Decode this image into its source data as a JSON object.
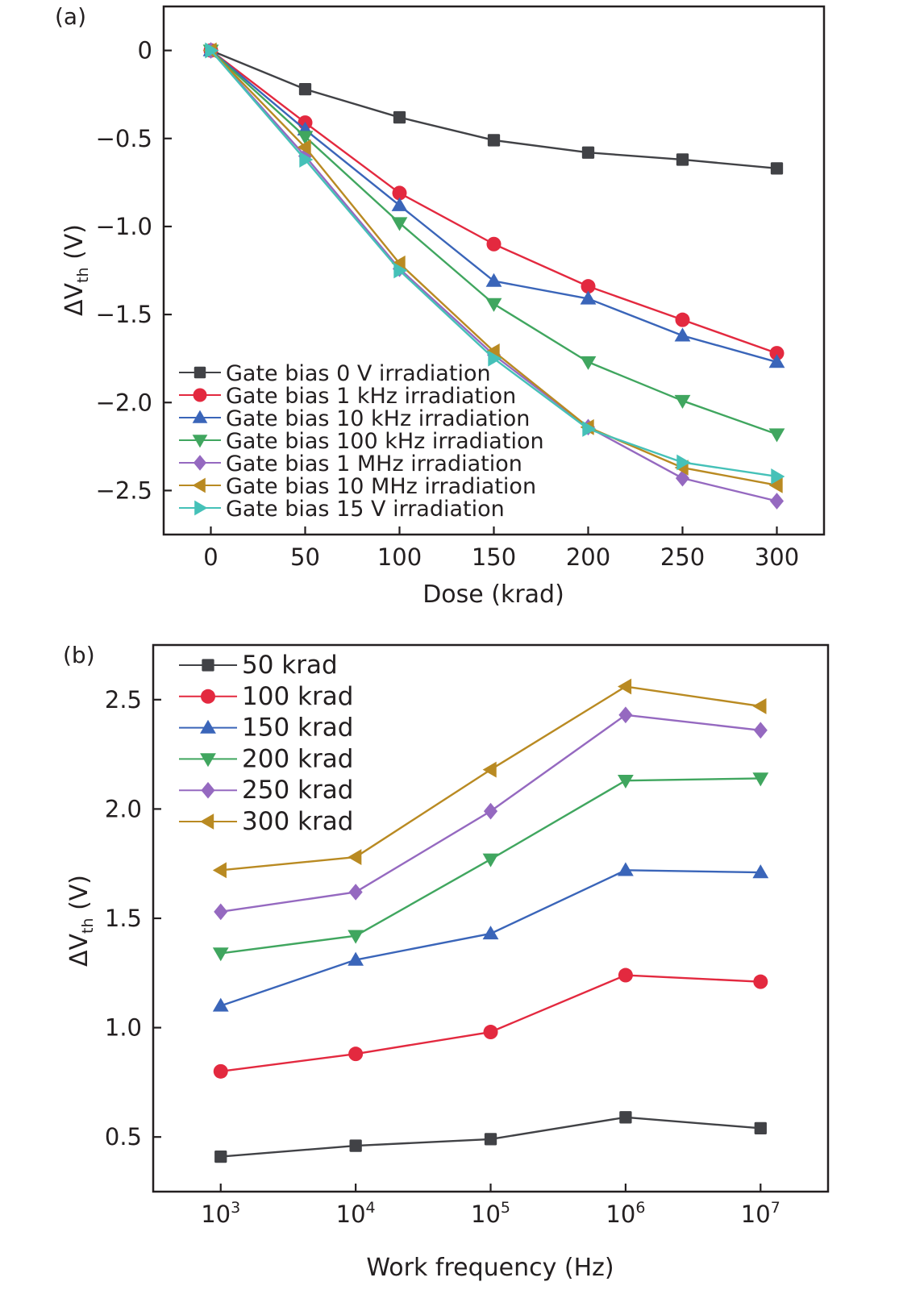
{
  "colors": {
    "axis": "#231f20",
    "s0": "#414246",
    "s1": "#e3293f",
    "s2": "#3a65b9",
    "s3": "#40a65f",
    "s4": "#9569c0",
    "s5": "#b98a22",
    "s6": "#45c1b8"
  },
  "chart_data": [
    {
      "type": "line",
      "panel_label": "(a)",
      "title": "",
      "xlabel": "Dose (krad)",
      "ylabel_prefix": "ΔV",
      "ylabel_sub": "th",
      "ylabel_suffix": " (V)",
      "xlim": [
        -25,
        325
      ],
      "ylim": [
        -2.75,
        0.25
      ],
      "x_scale": "linear",
      "xticks": [
        0,
        50,
        100,
        150,
        200,
        250,
        300
      ],
      "xtick_labels": [
        "0",
        "50",
        "100",
        "150",
        "200",
        "250",
        "300"
      ],
      "yticks": [
        0,
        -0.5,
        -1.0,
        -1.5,
        -2.0,
        -2.5
      ],
      "ytick_labels": [
        "0",
        "−0.5",
        "−1.0",
        "−1.5",
        "−2.0",
        "−2.5"
      ],
      "grid": false,
      "legend_position": "bottom-left",
      "x": [
        0,
        50,
        100,
        150,
        200,
        250,
        300
      ],
      "series": [
        {
          "name": "Gate bias 0 V irradiation",
          "marker": "square",
          "color_key": "s0",
          "values": [
            0,
            -0.22,
            -0.38,
            -0.51,
            -0.58,
            -0.62,
            -0.67
          ]
        },
        {
          "name": "Gate bias 1 kHz irradiation",
          "marker": "circle",
          "color_key": "s1",
          "values": [
            0,
            -0.41,
            -0.81,
            -1.1,
            -1.34,
            -1.53,
            -1.72
          ]
        },
        {
          "name": "Gate bias 10 kHz irradiation",
          "marker": "triangle-up",
          "color_key": "s2",
          "values": [
            0,
            -0.45,
            -0.88,
            -1.31,
            -1.41,
            -1.62,
            -1.77
          ]
        },
        {
          "name": "Gate bias 100 kHz irradiation",
          "marker": "triangle-down",
          "color_key": "s3",
          "values": [
            0,
            -0.49,
            -0.98,
            -1.44,
            -1.77,
            -1.99,
            -2.18
          ]
        },
        {
          "name": "Gate bias 1 MHz irradiation",
          "marker": "diamond",
          "color_key": "s4",
          "values": [
            0,
            -0.6,
            -1.24,
            -1.73,
            -2.14,
            -2.43,
            -2.56
          ]
        },
        {
          "name": "Gate bias 10 MHz irradiation",
          "marker": "triangle-left",
          "color_key": "s5",
          "values": [
            0,
            -0.55,
            -1.21,
            -1.71,
            -2.14,
            -2.37,
            -2.47
          ]
        },
        {
          "name": "Gate bias 15 V irradiation",
          "marker": "triangle-right",
          "color_key": "s6",
          "values": [
            0,
            -0.62,
            -1.25,
            -1.75,
            -2.15,
            -2.34,
            -2.42
          ]
        }
      ]
    },
    {
      "type": "line",
      "panel_label": "(b)",
      "title": "",
      "xlabel": "Work frequency (Hz)",
      "ylabel_prefix": "ΔV",
      "ylabel_sub": "th",
      "ylabel_suffix": " (V)",
      "xlim": [
        316,
        31623000
      ],
      "ylim": [
        0.25,
        2.75
      ],
      "x_scale": "log",
      "xticks": [
        1000,
        10000,
        100000,
        1000000,
        10000000
      ],
      "xtick_base": "10",
      "xtick_exponents": [
        "3",
        "4",
        "5",
        "6",
        "7"
      ],
      "yticks": [
        0.5,
        1.0,
        1.5,
        2.0,
        2.5
      ],
      "ytick_labels": [
        "0.5",
        "1.0",
        "1.5",
        "2.0",
        "2.5"
      ],
      "grid": false,
      "legend_position": "top-left",
      "x": [
        1000,
        10000,
        100000,
        1000000,
        10000000
      ],
      "series": [
        {
          "name": "50  krad",
          "marker": "square",
          "color_key": "s0",
          "values": [
            0.41,
            0.46,
            0.49,
            0.59,
            0.54
          ]
        },
        {
          "name": "100 krad",
          "marker": "circle",
          "color_key": "s1",
          "values": [
            0.8,
            0.88,
            0.98,
            1.24,
            1.21
          ]
        },
        {
          "name": "150 krad",
          "marker": "triangle-up",
          "color_key": "s2",
          "values": [
            1.1,
            1.31,
            1.43,
            1.72,
            1.71
          ]
        },
        {
          "name": "200 krad",
          "marker": "triangle-down",
          "color_key": "s3",
          "values": [
            1.34,
            1.42,
            1.77,
            2.13,
            2.14
          ]
        },
        {
          "name": "250 krad",
          "marker": "diamond",
          "color_key": "s4",
          "values": [
            1.53,
            1.62,
            1.99,
            2.43,
            2.36
          ]
        },
        {
          "name": "300 krad",
          "marker": "triangle-left",
          "color_key": "s5",
          "values": [
            1.72,
            1.78,
            2.18,
            2.56,
            2.47
          ]
        }
      ]
    }
  ]
}
